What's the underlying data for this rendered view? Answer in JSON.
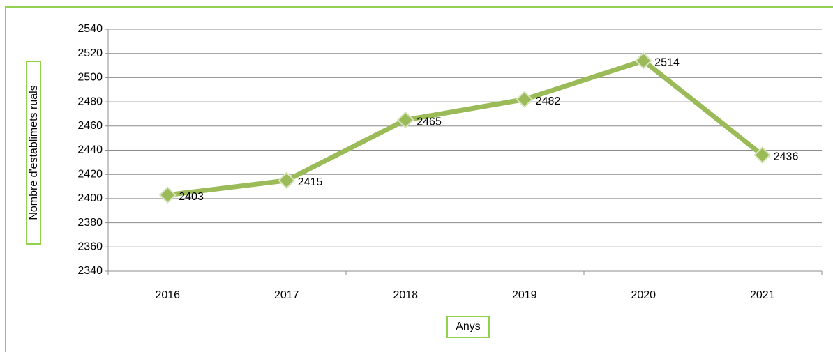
{
  "chart_data": {
    "type": "line",
    "y_label": "Nombre d'establimets ruals",
    "x_label": "Anys",
    "categories": [
      "2016",
      "2017",
      "2018",
      "2019",
      "2020",
      "2021"
    ],
    "series": [
      {
        "name": "Nombre d'establimets ruals",
        "color": "#9bbb59",
        "values": [
          2403,
          2415,
          2465,
          2482,
          2514,
          2436
        ]
      }
    ],
    "ylim": [
      2340,
      2540
    ],
    "yticks": [
      2340,
      2360,
      2380,
      2400,
      2420,
      2440,
      2460,
      2480,
      2500,
      2520,
      2540
    ],
    "grid": true
  }
}
